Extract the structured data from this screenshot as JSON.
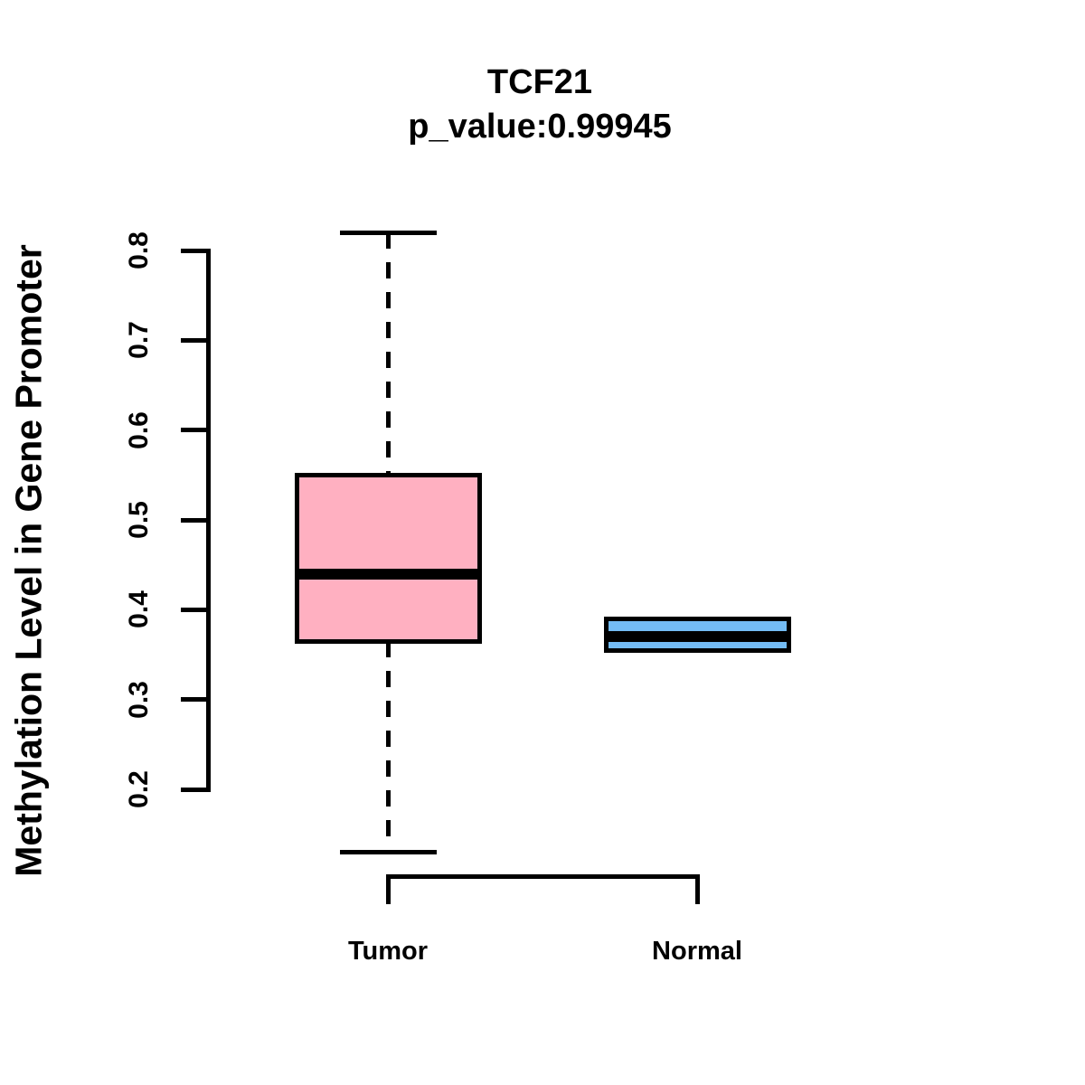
{
  "figure": {
    "background": "#FFFFFF"
  },
  "chart_data": {
    "type": "boxplot",
    "title": "TCF21",
    "subtitle": "p_value:0.99945",
    "ylabel": "Methylation Level in Gene Promoter",
    "xlabel": "",
    "categories": [
      "Tumor",
      "Normal"
    ],
    "series": [
      {
        "name": "Tumor",
        "fill_color": "#FFB0C1",
        "stats": {
          "min": 0.13,
          "q1": 0.365,
          "median": 0.44,
          "q3": 0.55,
          "max": 0.82
        }
      },
      {
        "name": "Normal",
        "fill_color": "#74BCF5",
        "stats": {
          "min": 0.355,
          "q1": 0.355,
          "median": 0.37,
          "q3": 0.39,
          "max": 0.39
        }
      }
    ],
    "ylim": [
      0.2,
      0.8
    ],
    "yticks": [
      0.2,
      0.3,
      0.4,
      0.5,
      0.6,
      0.7,
      0.8
    ],
    "ytick_decimals": 1,
    "grid": false,
    "legend": "none",
    "line_color": "#000000"
  }
}
